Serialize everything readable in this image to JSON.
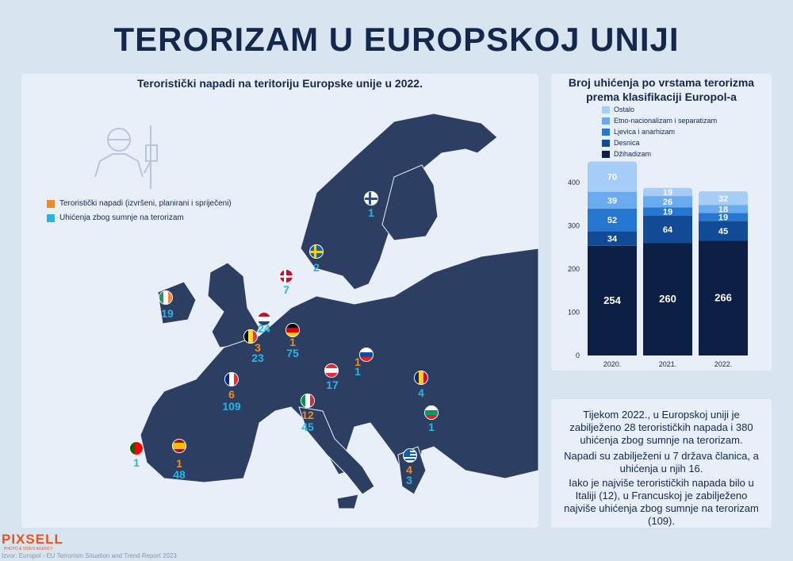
{
  "title": "TERORIZAM U EUROPSKOJ UNIJI",
  "map": {
    "title": "Teroristički napadi na teritoriju Europske unije u 2022.",
    "legend": [
      {
        "label": "Teroristički napadi (izvršeni, planirani i spriječeni)",
        "color": "#f08a24"
      },
      {
        "label": "Uhićenja zbog sumnje na terorizam",
        "color": "#27b6e4"
      }
    ],
    "countries": [
      {
        "name": "Finska",
        "arrests": "1"
      },
      {
        "name": "Švedska",
        "arrests": "2"
      },
      {
        "name": "Danska",
        "arrests": "7"
      },
      {
        "name": "Irska",
        "arrests": "19"
      },
      {
        "name": "Nizozemska",
        "arrests": "24"
      },
      {
        "name": "Belgija",
        "attacks": "3",
        "arrests": "23"
      },
      {
        "name": "Njemačka",
        "attacks": "1",
        "arrests": "75"
      },
      {
        "name": "Francuska",
        "attacks": "6",
        "arrests": "109"
      },
      {
        "name": "Austrija",
        "arrests": "17"
      },
      {
        "name": "Slovačka",
        "attacks": "1",
        "arrests": "1"
      },
      {
        "name": "Rumunjska",
        "arrests": "4"
      },
      {
        "name": "Italija",
        "attacks": "12",
        "arrests": "45"
      },
      {
        "name": "Bugarska",
        "arrests": "1"
      },
      {
        "name": "Portugal",
        "arrests": "1"
      },
      {
        "name": "Španjolska",
        "attacks": "1",
        "arrests": "48"
      },
      {
        "name": "Grčka",
        "attacks": "4",
        "arrests": "3"
      }
    ]
  },
  "chart_data": {
    "type": "bar",
    "stacked": true,
    "title_line1": "Broj uhićenja po vrstama terorizma",
    "title_line2": "prema klasifikaciji Europol-a",
    "categories": [
      "2020.",
      "2021.",
      "2022."
    ],
    "ylim": [
      0,
      450
    ],
    "yticks": [
      0,
      100,
      200,
      300,
      400
    ],
    "grid": false,
    "legend_position": "top",
    "series": [
      {
        "name": "Džihadizam",
        "color": "#0c1f45",
        "values": [
          254,
          260,
          266
        ]
      },
      {
        "name": "Desnica",
        "color": "#114b95",
        "values": [
          34,
          64,
          45
        ]
      },
      {
        "name": "Ljevica i anarhizam",
        "color": "#2677cf",
        "values": [
          52,
          19,
          19
        ]
      },
      {
        "name": "Etno-nacionalizam i separatizam",
        "color": "#6aaaee",
        "values": [
          39,
          26,
          18
        ]
      },
      {
        "name": "Ostalo",
        "color": "#a6cdf6",
        "values": [
          70,
          19,
          32
        ]
      }
    ]
  },
  "summary": {
    "p1": "Tijekom 2022., u Europskoj uniji je zabilježeno 28 terorističkih napada i 380 uhićenja zbog sumnje na terorizam.",
    "p2": "Napadi su zabilježeni u 7 država članica, a uhićenja u njih 16.",
    "p3": "Iako je najviše terorističkih napada bilo u Italiji (12), u Francuskoj je zabilježeno najviše uhićenja zbog sumnje na terorizam (109)."
  },
  "logo": {
    "name": "PIXSELL",
    "tagline": "PHOTO & VIDEO AGENCY"
  },
  "source": "Izvor: Europol - EU Terrorism Situation and Trend Report 2023"
}
